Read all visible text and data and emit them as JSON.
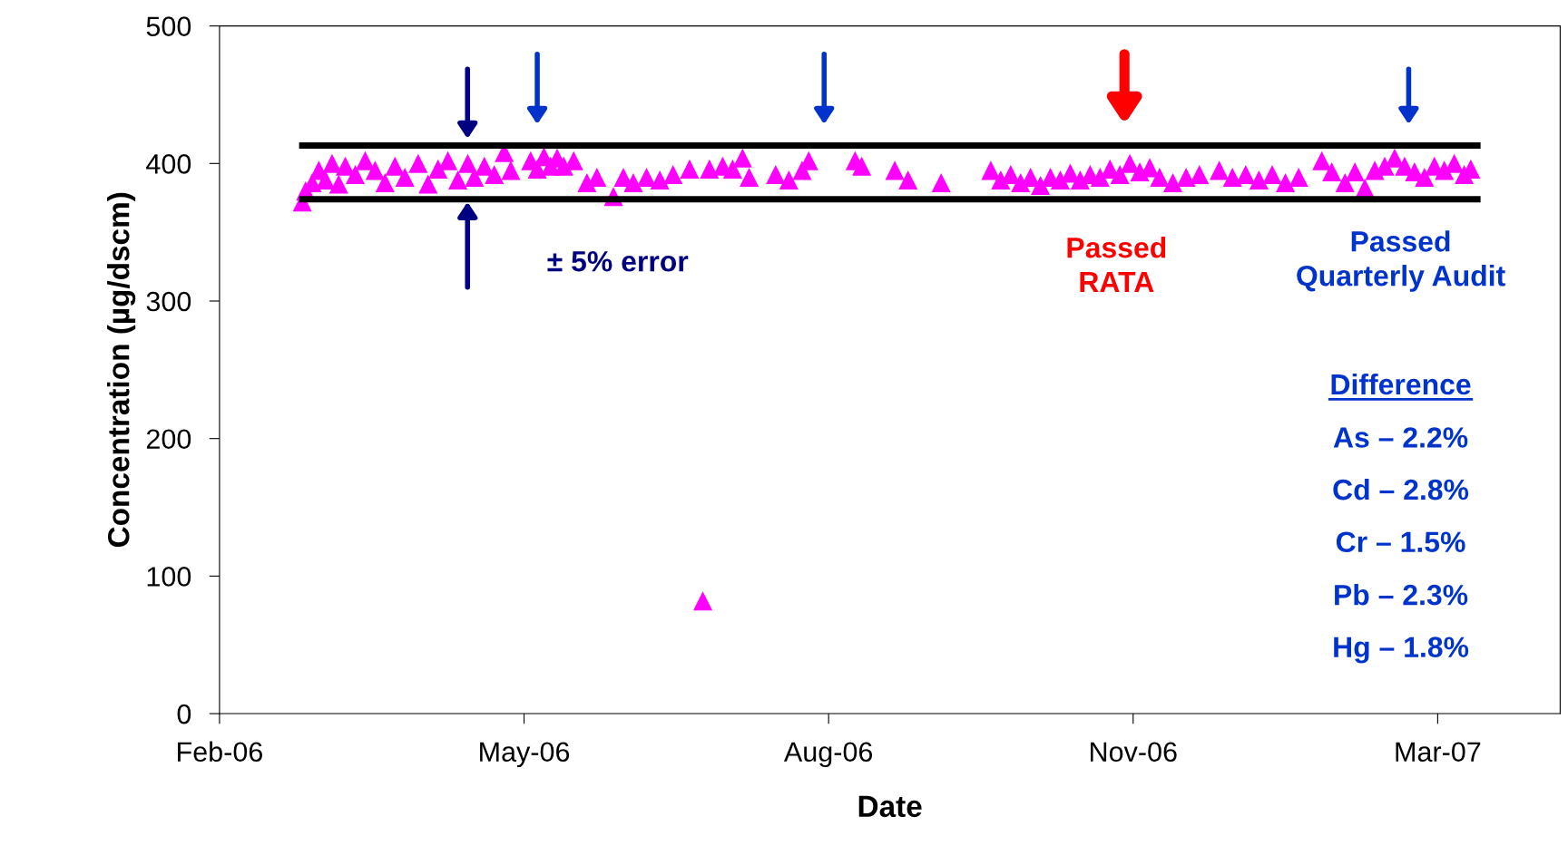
{
  "chart_data": {
    "type": "scatter",
    "xlabel": "Date",
    "ylabel": "Concentration (µg/dscm)",
    "x": [
      "2006-03-24",
      "2006-03-25",
      "2006-03-27",
      "2006-03-29",
      "2006-03-31",
      "2006-04-02",
      "2006-04-04",
      "2006-04-06",
      "2006-04-09",
      "2006-04-12",
      "2006-04-15",
      "2006-04-18",
      "2006-04-21",
      "2006-04-24",
      "2006-04-28",
      "2006-05-01",
      "2006-05-04",
      "2006-05-07",
      "2006-05-10",
      "2006-05-13",
      "2006-05-15",
      "2006-05-18",
      "2006-05-21",
      "2006-05-24",
      "2006-05-26",
      "2006-06-01",
      "2006-06-03",
      "2006-06-05",
      "2006-06-07",
      "2006-06-09",
      "2006-06-11",
      "2006-06-14",
      "2006-06-18",
      "2006-06-21",
      "2006-06-26",
      "2006-06-29",
      "2006-07-02",
      "2006-07-06",
      "2006-07-10",
      "2006-07-14",
      "2006-07-19",
      "2006-07-23",
      "2006-07-25",
      "2006-07-29",
      "2006-08-01",
      "2006-08-04",
      "2006-08-06",
      "2006-08-14",
      "2006-08-18",
      "2006-08-22",
      "2006-08-24",
      "2006-09-07",
      "2006-09-09",
      "2006-09-19",
      "2006-09-23",
      "2006-10-03",
      "2006-10-18",
      "2006-10-21",
      "2006-10-24",
      "2006-10-27",
      "2006-10-30",
      "2006-11-02",
      "2006-11-05",
      "2006-11-08",
      "2006-11-11",
      "2006-11-14",
      "2006-11-17",
      "2006-11-20",
      "2006-11-23",
      "2006-11-26",
      "2006-11-29",
      "2006-12-02",
      "2006-12-05",
      "2006-12-08",
      "2006-12-12",
      "2006-12-16",
      "2006-12-20",
      "2006-12-26",
      "2006-12-30",
      "2007-01-03",
      "2007-01-07",
      "2007-01-11",
      "2007-01-15",
      "2007-01-19",
      "2007-01-26",
      "2007-01-29",
      "2007-02-02",
      "2007-02-05",
      "2007-02-08",
      "2007-02-11",
      "2007-02-14",
      "2007-02-17",
      "2007-02-20",
      "2007-02-23",
      "2007-02-26",
      "2007-03-01",
      "2007-03-04",
      "2007-03-07",
      "2007-03-10",
      "2007-03-12"
    ],
    "series": [
      {
        "color": "#ff00ff",
        "values": [
          372,
          380,
          386,
          395,
          388,
          400,
          385,
          398,
          392,
          402,
          395,
          386,
          398,
          390,
          400,
          385,
          396,
          402,
          388,
          400,
          390,
          398,
          392,
          408,
          395,
          402,
          396,
          405,
          398,
          404,
          398,
          402,
          386,
          390,
          376,
          390,
          386,
          390,
          388,
          392,
          396,
          82,
          396,
          398,
          396,
          404,
          390,
          392,
          388,
          395,
          402,
          402,
          398,
          395,
          388,
          386,
          395,
          388,
          392,
          386,
          390,
          384,
          390,
          388,
          393,
          388,
          392,
          390,
          396,
          392,
          400,
          394,
          397,
          390,
          386,
          390,
          392,
          395,
          390,
          392,
          388,
          392,
          386,
          390,
          402,
          394,
          386,
          394,
          382,
          395,
          398,
          404,
          398,
          394,
          390,
          398,
          395,
          400,
          392,
          396
        ]
      }
    ],
    "marker": "triangle",
    "xlim": [
      "2006-02-27",
      "2007-04-08"
    ],
    "xticks": [
      {
        "value": "2006-02-27",
        "label": "Feb-06"
      },
      {
        "value": "2006-05-30",
        "label": "May-06"
      },
      {
        "value": "2006-08-30",
        "label": "Aug-06"
      },
      {
        "value": "2006-11-30",
        "label": "Nov-06"
      },
      {
        "value": "2007-03-02",
        "label": "Mar-07"
      }
    ],
    "ylim": [
      0,
      500
    ],
    "yticks": [
      0,
      100,
      200,
      300,
      400,
      500
    ],
    "ref_lines": [
      {
        "axis": "y",
        "value": 413,
        "color": "#000000"
      },
      {
        "axis": "y",
        "value": 374,
        "color": "#000000"
      }
    ],
    "annotations": [
      "± 5% error",
      "Passed\nRATA",
      "Passed\nQuarterly Audit",
      "Difference",
      "As – 2.2%",
      "Cd – 2.8%",
      "Cr – 1.5%",
      "Pb – 2.3%",
      "Hg – 1.8%"
    ],
    "grid": false,
    "legend": false
  }
}
